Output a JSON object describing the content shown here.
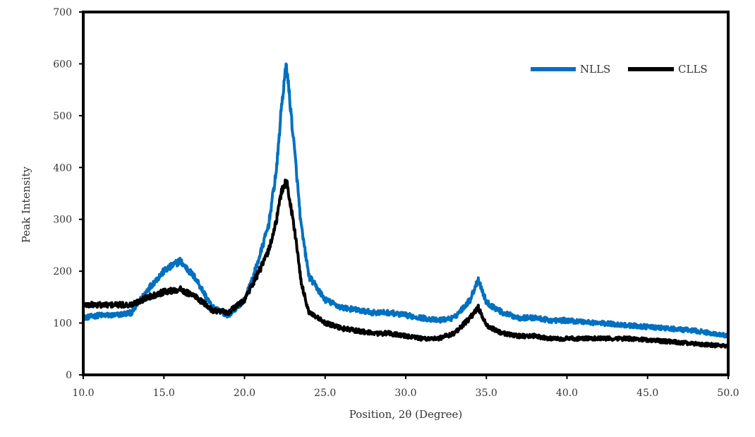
{
  "chart_data": {
    "type": "line",
    "title": "",
    "xlabel": "Position, 2θ (Degree)",
    "ylabel": "Peak Intensity",
    "xlim": [
      10.0,
      50.0
    ],
    "ylim": [
      0,
      700
    ],
    "x_ticks": [
      "10.0",
      "15.0",
      "20.0",
      "25.0",
      "30.0",
      "35.0",
      "40.0",
      "45.0",
      "50.0"
    ],
    "y_ticks": [
      "0",
      "100",
      "200",
      "300",
      "400",
      "500",
      "600",
      "700"
    ],
    "grid": false,
    "legend_position": "top-right",
    "x": [
      10,
      11,
      12,
      13,
      14,
      15,
      16,
      17,
      18,
      19,
      20,
      20.5,
      21,
      21.5,
      22,
      22.3,
      22.6,
      22.9,
      23.2,
      23.5,
      24,
      25,
      26,
      27,
      28,
      29,
      30,
      31,
      32,
      33,
      34,
      34.5,
      35,
      36,
      37,
      38,
      39,
      40,
      42,
      44,
      46,
      48,
      50
    ],
    "series": [
      {
        "name": "NLLS",
        "color": "#0070C0",
        "values": [
          110,
          115,
          115,
          120,
          165,
          200,
          220,
          185,
          130,
          115,
          145,
          185,
          235,
          290,
          400,
          520,
          600,
          500,
          400,
          290,
          190,
          145,
          130,
          125,
          120,
          120,
          115,
          110,
          105,
          110,
          145,
          185,
          140,
          120,
          110,
          110,
          105,
          105,
          100,
          95,
          90,
          85,
          75
        ]
      },
      {
        "name": "CLLS",
        "color": "#000000",
        "values": [
          135,
          135,
          135,
          135,
          150,
          160,
          165,
          150,
          125,
          120,
          145,
          175,
          205,
          240,
          300,
          355,
          375,
          320,
          260,
          180,
          120,
          100,
          90,
          85,
          80,
          80,
          75,
          70,
          70,
          80,
          110,
          130,
          95,
          80,
          75,
          75,
          70,
          70,
          70,
          70,
          65,
          60,
          55
        ]
      }
    ]
  }
}
